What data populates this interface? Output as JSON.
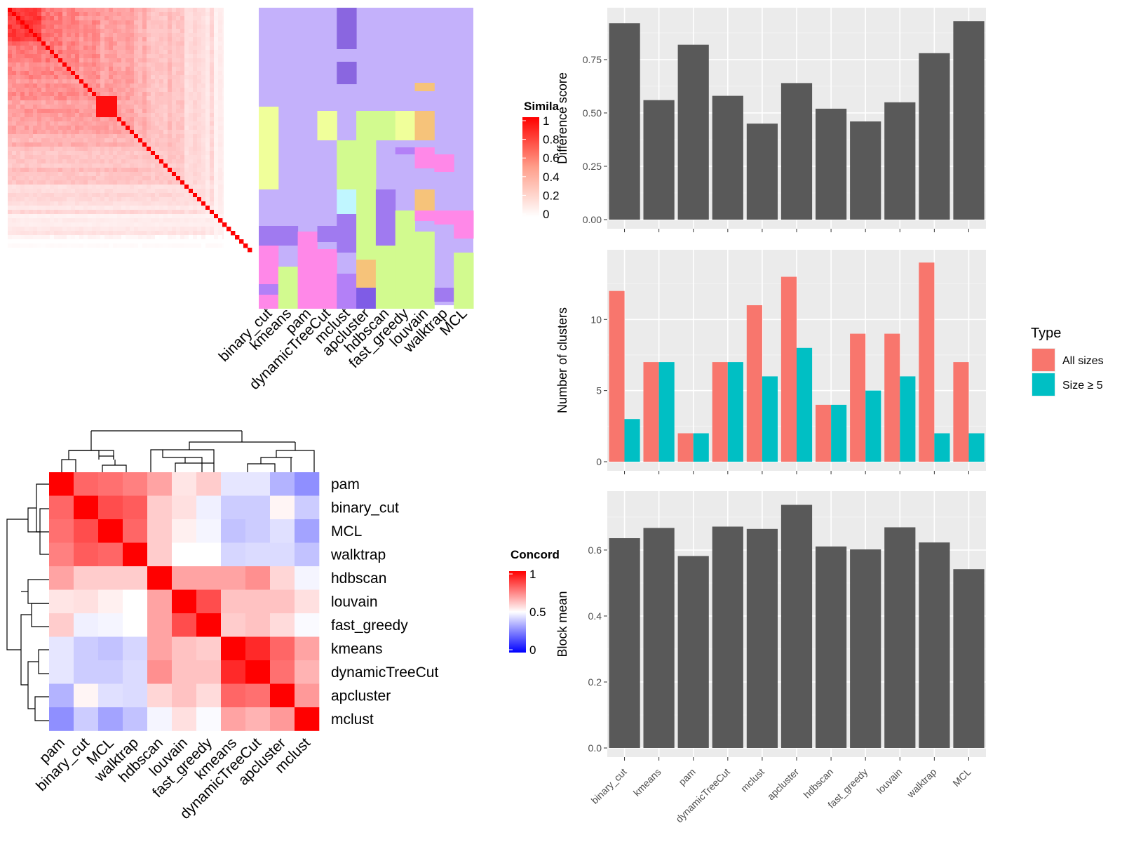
{
  "colors": {
    "panel_bg": "#ebebeb",
    "grid": "#ffffff",
    "bar": "#595959",
    "all_sizes": "#f8766d",
    "size_ge5": "#00bfc4",
    "heat_high": "#ff0000",
    "heat_mid": "#ffffff",
    "heat_low": "#0000ff",
    "cluster_bg": "#c4b1fb"
  },
  "similarity_heatmap": {
    "legend_title": "Simila",
    "legend_ticks": [
      "1",
      "0.8",
      "0.6",
      "0.4",
      "0.2",
      "0"
    ],
    "methods": [
      "binary_cut",
      "kmeans",
      "pam",
      "dynamicTreeCut",
      "mclust",
      "apcluster",
      "hdbscan",
      "fast_greedy",
      "louvain",
      "walktrap",
      "MCL"
    ]
  },
  "concordance_heatmap": {
    "legend_title": "Concord",
    "legend_ticks": [
      "1",
      "0.5",
      "0"
    ],
    "row_labels": [
      "pam",
      "binary_cut",
      "MCL",
      "walktrap",
      "hdbscan",
      "louvain",
      "fast_greedy",
      "kmeans",
      "dynamicTreeCut",
      "apcluster",
      "mclust"
    ],
    "col_labels": [
      "pam",
      "binary_cut",
      "MCL",
      "walktrap",
      "hdbscan",
      "louvain",
      "fast_greedy",
      "kmeans",
      "dynamicTreeCut",
      "apcluster",
      "mclust"
    ],
    "matrix": [
      [
        1.0,
        0.8,
        0.78,
        0.75,
        0.68,
        0.55,
        0.6,
        0.45,
        0.45,
        0.35,
        0.28
      ],
      [
        0.8,
        1.0,
        0.85,
        0.82,
        0.6,
        0.56,
        0.47,
        0.4,
        0.4,
        0.52,
        0.4
      ],
      [
        0.78,
        0.85,
        1.0,
        0.8,
        0.6,
        0.53,
        0.48,
        0.38,
        0.4,
        0.44,
        0.32
      ],
      [
        0.75,
        0.82,
        0.8,
        1.0,
        0.6,
        0.5,
        0.5,
        0.42,
        0.43,
        0.43,
        0.38
      ],
      [
        0.68,
        0.6,
        0.6,
        0.6,
        1.0,
        0.68,
        0.68,
        0.68,
        0.72,
        0.58,
        0.48
      ],
      [
        0.55,
        0.56,
        0.53,
        0.5,
        0.68,
        1.0,
        0.85,
        0.62,
        0.62,
        0.62,
        0.56
      ],
      [
        0.6,
        0.47,
        0.48,
        0.5,
        0.68,
        0.85,
        1.0,
        0.6,
        0.62,
        0.57,
        0.49
      ],
      [
        0.45,
        0.4,
        0.38,
        0.42,
        0.68,
        0.62,
        0.6,
        1.0,
        0.92,
        0.8,
        0.68
      ],
      [
        0.45,
        0.4,
        0.4,
        0.43,
        0.72,
        0.62,
        0.62,
        0.92,
        1.0,
        0.78,
        0.65
      ],
      [
        0.35,
        0.52,
        0.44,
        0.43,
        0.58,
        0.62,
        0.57,
        0.8,
        0.78,
        1.0,
        0.7
      ],
      [
        0.28,
        0.4,
        0.32,
        0.38,
        0.48,
        0.56,
        0.49,
        0.68,
        0.65,
        0.7,
        1.0
      ]
    ]
  },
  "chart_data": [
    {
      "type": "bar",
      "ylabel": "Difference score",
      "xlabel": "",
      "categories": [
        "binary_cut",
        "kmeans",
        "pam",
        "dynamicTreeCut",
        "mclust",
        "apcluster",
        "hdbscan",
        "fast_greedy",
        "louvain",
        "walktrap",
        "MCL"
      ],
      "values": [
        0.92,
        0.56,
        0.82,
        0.58,
        0.45,
        0.64,
        0.52,
        0.46,
        0.55,
        0.78,
        0.93
      ],
      "ylim": [
        0,
        0.98
      ],
      "yticks": [
        "0.00",
        "0.25",
        "0.50",
        "0.75"
      ],
      "yticks_num": [
        0,
        0.25,
        0.5,
        0.75
      ],
      "grid": true
    },
    {
      "type": "bar",
      "ylabel": "Number of clusters",
      "xlabel": "",
      "categories": [
        "binary_cut",
        "kmeans",
        "pam",
        "dynamicTreeCut",
        "mclust",
        "apcluster",
        "hdbscan",
        "fast_greedy",
        "louvain",
        "walktrap",
        "MCL"
      ],
      "series": [
        {
          "name": "All sizes",
          "values": [
            12,
            7,
            2,
            7,
            11,
            13,
            4,
            9,
            9,
            14,
            7
          ]
        },
        {
          "name": "Size ≥ 5",
          "values": [
            3,
            7,
            2,
            7,
            6,
            8,
            4,
            5,
            6,
            2,
            2
          ]
        }
      ],
      "legend_title": "Type",
      "legend_position": "right",
      "ylim": [
        0,
        14.7
      ],
      "yticks": [
        "0",
        "5",
        "10"
      ],
      "yticks_num": [
        0,
        5,
        10
      ],
      "grid": true
    },
    {
      "type": "bar",
      "ylabel": "Block mean",
      "xlabel": "",
      "categories": [
        "binary_cut",
        "kmeans",
        "pam",
        "dynamicTreeCut",
        "mclust",
        "apcluster",
        "hdbscan",
        "fast_greedy",
        "louvain",
        "walktrap",
        "MCL"
      ],
      "values": [
        0.636,
        0.667,
        0.582,
        0.671,
        0.664,
        0.737,
        0.611,
        0.602,
        0.669,
        0.623,
        0.542
      ],
      "ylim": [
        0,
        0.77
      ],
      "yticks": [
        "0.0",
        "0.2",
        "0.4",
        "0.6"
      ],
      "yticks_num": [
        0,
        0.2,
        0.4,
        0.6
      ],
      "grid": true
    }
  ]
}
